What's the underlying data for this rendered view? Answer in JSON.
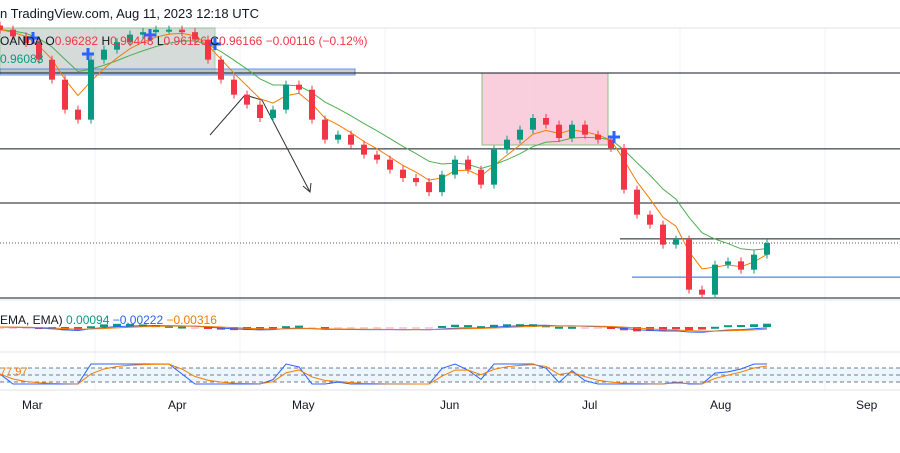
{
  "header": {
    "title": "n TradingView.com, Aug 11, 2023 12:18 UTC"
  },
  "legend": {
    "symbol": "OANDA",
    "open": "0.96282",
    "high": "0.96448",
    "low": "0.96126",
    "close": "0.96166",
    "change": "−0.00116 (−0.12%)",
    "ma_value": "0.96083"
  },
  "macd": {
    "label": "EMA, EMA)",
    "hist": "0.00094",
    "macd": "−0.00222",
    "signal": "−0.00316"
  },
  "stoch": {
    "label": "77.97"
  },
  "months": [
    "Mar",
    "Apr",
    "May",
    "Jun",
    "Jul",
    "Aug",
    "Sep"
  ],
  "colors": {
    "up": "#089981",
    "down": "#f23645",
    "fast_ma": "#f57c00",
    "slow_ma": "#4caf50",
    "macd": "#2962ff",
    "signal": "#f57c00",
    "zone": "#f8bbd0"
  },
  "chart_data": {
    "type": "candlestick",
    "closes": [
      0.9873,
      0.9865,
      0.9857,
      0.9837,
      0.9813,
      0.9777,
      0.9765,
      0.9837,
      0.9849,
      0.9858,
      0.9867,
      0.987,
      0.9873,
      0.9873,
      0.987,
      0.9861,
      0.9837,
      0.9813,
      0.9795,
      0.9783,
      0.9767,
      0.9777,
      0.9807,
      0.9801,
      0.9765,
      0.9741,
      0.9747,
      0.9735,
      0.9723,
      0.9717,
      0.9705,
      0.9695,
      0.969,
      0.9678,
      0.9699,
      0.9717,
      0.9705,
      0.9687,
      0.9729,
      0.9741,
      0.9753,
      0.9767,
      0.9759,
      0.9743,
      0.9759,
      0.9747,
      0.9741,
      0.9731,
      0.9681,
      0.9651,
      0.9639,
      0.9615,
      0.9621,
      0.9561,
      0.9555,
      0.9591,
      0.9595,
      0.9585,
      0.9603,
      0.9617
    ],
    "levels": [
      0.9821,
      0.973,
      0.9665,
      0.9622,
      0.9576,
      0.9551
    ],
    "last_price": 0.9617
  }
}
